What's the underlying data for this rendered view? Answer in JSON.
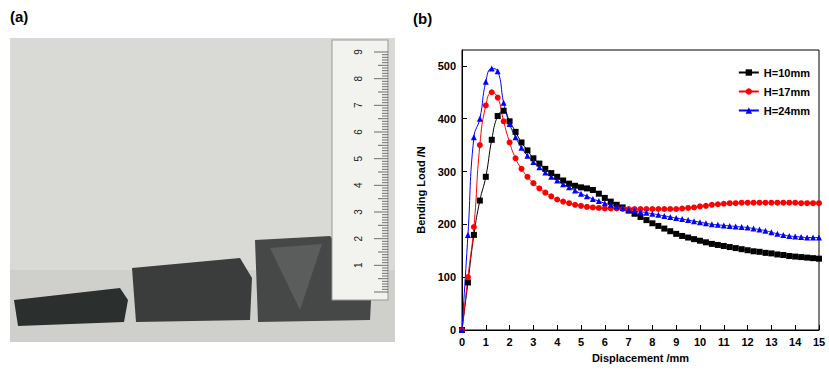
{
  "photo": {
    "label": "(a)",
    "ruler_labels": [
      1,
      2,
      3,
      4,
      5,
      6,
      7,
      8,
      9
    ]
  },
  "chart_data": {
    "type": "line",
    "title": "(b)",
    "x_label": "Displacement /mm",
    "y_label": "Bending Load /N",
    "xlim": [
      0,
      15
    ],
    "xticks": [
      0,
      1,
      2,
      3,
      4,
      5,
      6,
      7,
      8,
      9,
      10,
      11,
      12,
      13,
      14,
      15
    ],
    "ylim": [
      0,
      530
    ],
    "yticks": [
      0,
      100,
      200,
      300,
      400,
      500
    ],
    "grid": false,
    "legend": "upper right",
    "x": [
      0,
      0.25,
      0.5,
      0.75,
      1,
      1.25,
      1.5,
      1.75,
      2,
      2.25,
      2.5,
      2.75,
      3,
      3.25,
      3.5,
      3.75,
      4,
      4.25,
      4.5,
      4.75,
      5,
      5.25,
      5.5,
      5.75,
      6,
      6.25,
      6.5,
      6.75,
      7,
      7.25,
      7.5,
      7.75,
      8,
      8.25,
      8.5,
      8.75,
      9,
      9.25,
      9.5,
      9.75,
      10,
      10.25,
      10.5,
      10.75,
      11,
      11.25,
      11.5,
      11.75,
      12,
      12.25,
      12.5,
      12.75,
      13,
      13.25,
      13.5,
      13.75,
      14,
      14.25,
      14.5,
      14.75,
      15
    ],
    "series": [
      {
        "name": "H=10mm",
        "color": "#000000",
        "marker": "square",
        "values": [
          0,
          90,
          180,
          245,
          290,
          360,
          405,
          415,
          395,
          375,
          355,
          340,
          325,
          315,
          305,
          297,
          290,
          283,
          277,
          273,
          270,
          268,
          265,
          258,
          250,
          243,
          237,
          232,
          226,
          220,
          214,
          208,
          202,
          197,
          192,
          187,
          182,
          178,
          175,
          172,
          169,
          166,
          163,
          161,
          159,
          157,
          155,
          153,
          151,
          149,
          148,
          146,
          145,
          143,
          142,
          140,
          139,
          138,
          137,
          136,
          135
        ]
      },
      {
        "name": "H=17mm",
        "color": "#ff0000",
        "marker": "circle",
        "values": [
          0,
          100,
          195,
          350,
          425,
          450,
          440,
          395,
          355,
          325,
          305,
          290,
          278,
          268,
          260,
          253,
          247,
          243,
          240,
          237,
          235,
          233,
          232,
          231,
          230,
          230,
          230,
          229,
          229,
          229,
          229,
          229,
          229,
          229,
          229,
          229,
          229,
          230,
          231,
          232,
          234,
          235,
          237,
          238,
          239,
          240,
          240,
          241,
          241,
          241,
          241,
          241,
          241,
          241,
          241,
          241,
          241,
          240,
          240,
          240,
          240
        ]
      },
      {
        "name": "H=24mm",
        "color": "#0000ff",
        "marker": "triangle",
        "values": [
          0,
          180,
          365,
          400,
          470,
          495,
          490,
          430,
          390,
          365,
          345,
          330,
          318,
          308,
          298,
          290,
          283,
          276,
          270,
          264,
          258,
          253,
          248,
          244,
          240,
          237,
          234,
          231,
          228,
          226,
          224,
          222,
          220,
          218,
          216,
          214,
          212,
          210,
          208,
          206,
          204,
          202,
          200,
          199,
          198,
          197,
          196,
          195,
          194,
          192,
          190,
          188,
          185,
          182,
          180,
          178,
          177,
          176,
          175,
          175,
          175
        ]
      }
    ]
  }
}
